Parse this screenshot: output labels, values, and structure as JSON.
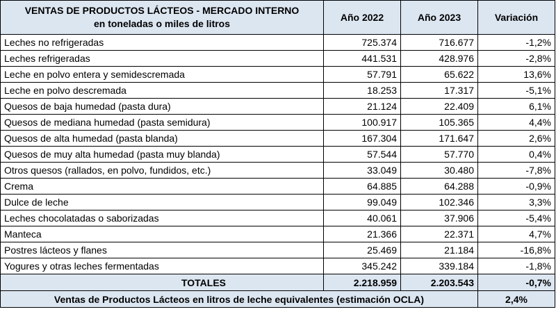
{
  "title_line1": "VENTAS DE PRODUCTOS LÁCTEOS - MERCADO INTERNO",
  "title_line2": "en toneladas o miles de litros",
  "columns": [
    "Año 2022",
    "Año 2023",
    "Variación"
  ],
  "rows": [
    {
      "label": "Leches no refrigeradas",
      "y2022": "725.374",
      "y2023": "716.677",
      "var": "-1,2%"
    },
    {
      "label": "Leches refrigeradas",
      "y2022": "441.531",
      "y2023": "428.976",
      "var": "-2,8%"
    },
    {
      "label": "Leche en polvo entera y semidescremada",
      "y2022": "57.791",
      "y2023": "65.622",
      "var": "13,6%"
    },
    {
      "label": "Leche en polvo descremada",
      "y2022": "18.253",
      "y2023": "17.317",
      "var": "-5,1%"
    },
    {
      "label": "Quesos de baja humedad (pasta dura)",
      "y2022": "21.124",
      "y2023": "22.409",
      "var": "6,1%"
    },
    {
      "label": "Quesos de mediana humedad (pasta semidura)",
      "y2022": "100.917",
      "y2023": "105.365",
      "var": "4,4%"
    },
    {
      "label": "Quesos de alta humedad (pasta blanda)",
      "y2022": "167.304",
      "y2023": "171.647",
      "var": "2,6%"
    },
    {
      "label": "Quesos de muy alta humedad (pasta muy blanda)",
      "y2022": "57.544",
      "y2023": "57.770",
      "var": "0,4%"
    },
    {
      "label": "Otros quesos (rallados, en polvo, fundidos, etc.)",
      "y2022": "33.049",
      "y2023": "30.480",
      "var": "-7,8%"
    },
    {
      "label": "Crema",
      "y2022": "64.885",
      "y2023": "64.288",
      "var": "-0,9%"
    },
    {
      "label": "Dulce de leche",
      "y2022": "99.049",
      "y2023": "102.346",
      "var": "3,3%"
    },
    {
      "label": "Leches chocolatadas o saborizadas",
      "y2022": "40.061",
      "y2023": "37.906",
      "var": "-5,4%"
    },
    {
      "label": "Manteca",
      "y2022": "21.366",
      "y2023": "22.371",
      "var": "4,7%"
    },
    {
      "label": "Postres lácteos y flanes",
      "y2022": "25.469",
      "y2023": "21.184",
      "var": "-16,8%"
    },
    {
      "label": "Yogures y otras leches fermentadas",
      "y2022": "345.242",
      "y2023": "339.184",
      "var": "-1,8%"
    }
  ],
  "totals": {
    "label": "TOTALES",
    "y2022": "2.218.959",
    "y2023": "2.203.543",
    "var": "-0,7%"
  },
  "footer": {
    "label": "Ventas de Productos Lácteos en litros de leche equivalentes (estimación OCLA)",
    "value": "2,4%"
  }
}
